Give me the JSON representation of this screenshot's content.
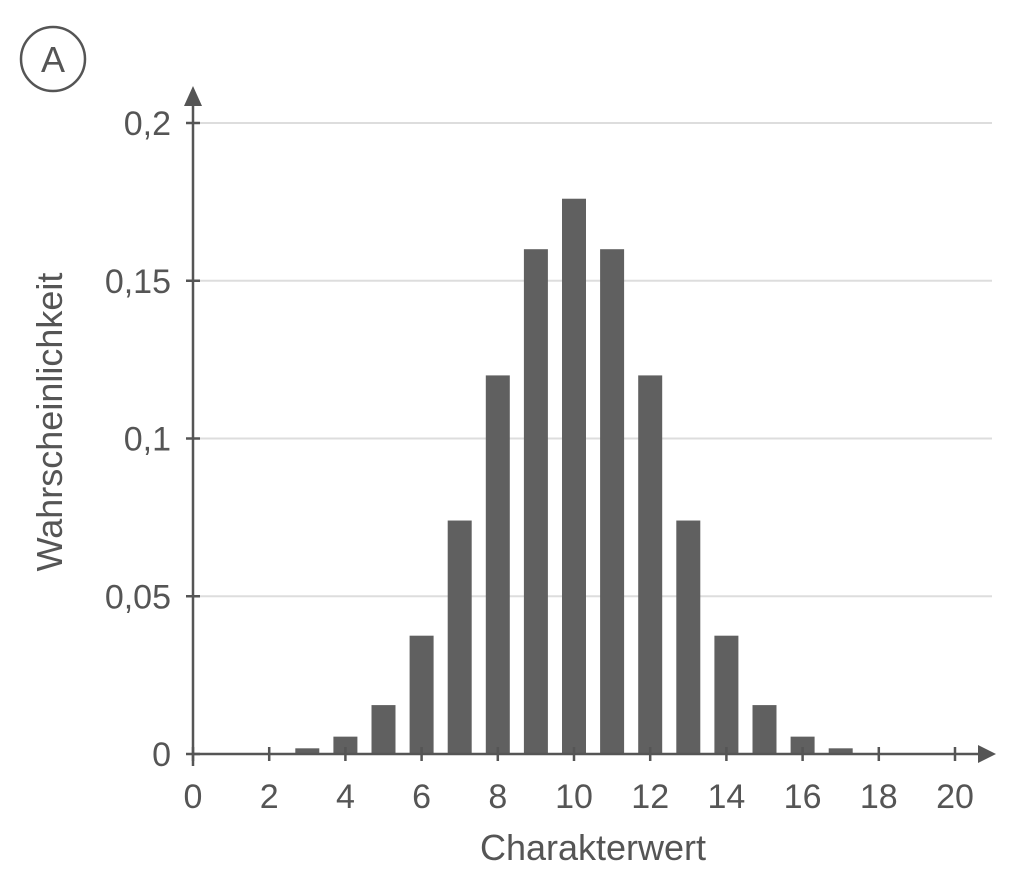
{
  "panel_label": "A",
  "chart_data": {
    "type": "bar",
    "xlabel": "Charakterwert",
    "ylabel": "Wahrscheinlichkeit",
    "xlim": [
      0,
      20
    ],
    "ylim": [
      0,
      0.2
    ],
    "x_ticks": [
      0,
      2,
      4,
      6,
      8,
      10,
      12,
      14,
      16,
      18,
      20
    ],
    "x_tick_labels": [
      "0",
      "2",
      "4",
      "6",
      "8",
      "10",
      "12",
      "14",
      "16",
      "18",
      "20"
    ],
    "y_ticks": [
      0,
      0.05,
      0.1,
      0.15,
      0.2
    ],
    "y_tick_labels": [
      "0",
      "0,05",
      "0,1",
      "0,15",
      "0,2"
    ],
    "grid": true,
    "x": [
      3,
      4,
      5,
      6,
      7,
      8,
      9,
      10,
      11,
      12,
      13,
      14,
      15,
      16,
      17
    ],
    "values": [
      0.0018,
      0.0055,
      0.0155,
      0.0375,
      0.074,
      0.12,
      0.16,
      0.176,
      0.16,
      0.12,
      0.074,
      0.0375,
      0.0155,
      0.0055,
      0.0018
    ],
    "colors": {
      "bar": "#606060",
      "axis": "#555555",
      "grid": "#dddddd",
      "text": "#555555"
    }
  }
}
